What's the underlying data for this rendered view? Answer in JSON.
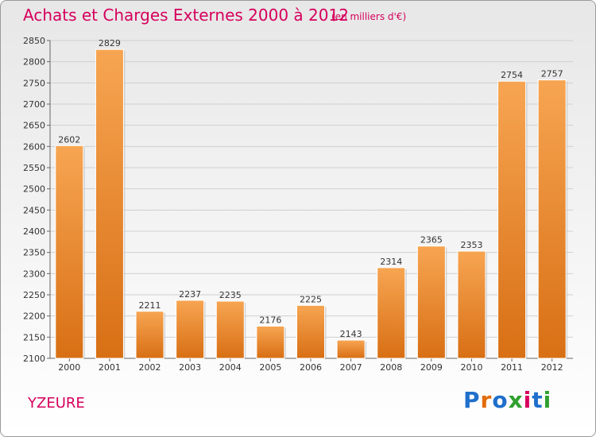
{
  "header": {
    "title": "Achats et Charges Externes 2000 à 2012",
    "subtitle": "(en milliers d'€)"
  },
  "footer": {
    "city": "YZEURE",
    "logo": {
      "text": "Proxiti",
      "colors": [
        "#1f6fcc",
        "#e36c0a",
        "#1f6fcc",
        "#2ea02e",
        "#d6005c",
        "#1f6fcc",
        "#2ea02e"
      ]
    }
  },
  "chart_data": {
    "type": "bar",
    "title": "Achats et Charges Externes 2000 à 2012",
    "subtitle": "(en milliers d'€)",
    "categories": [
      "2000",
      "2001",
      "2002",
      "2003",
      "2004",
      "2005",
      "2006",
      "2007",
      "2008",
      "2009",
      "2010",
      "2011",
      "2012"
    ],
    "values": [
      2602,
      2829,
      2211,
      2237,
      2235,
      2176,
      2225,
      2143,
      2314,
      2365,
      2353,
      2754,
      2757
    ],
    "ylim": [
      2100,
      2850
    ],
    "yticks": [
      2100,
      2150,
      2200,
      2250,
      2300,
      2350,
      2400,
      2450,
      2500,
      2550,
      2600,
      2650,
      2700,
      2750,
      2800,
      2850
    ],
    "grid": true,
    "bar_color": "#f08a28"
  }
}
